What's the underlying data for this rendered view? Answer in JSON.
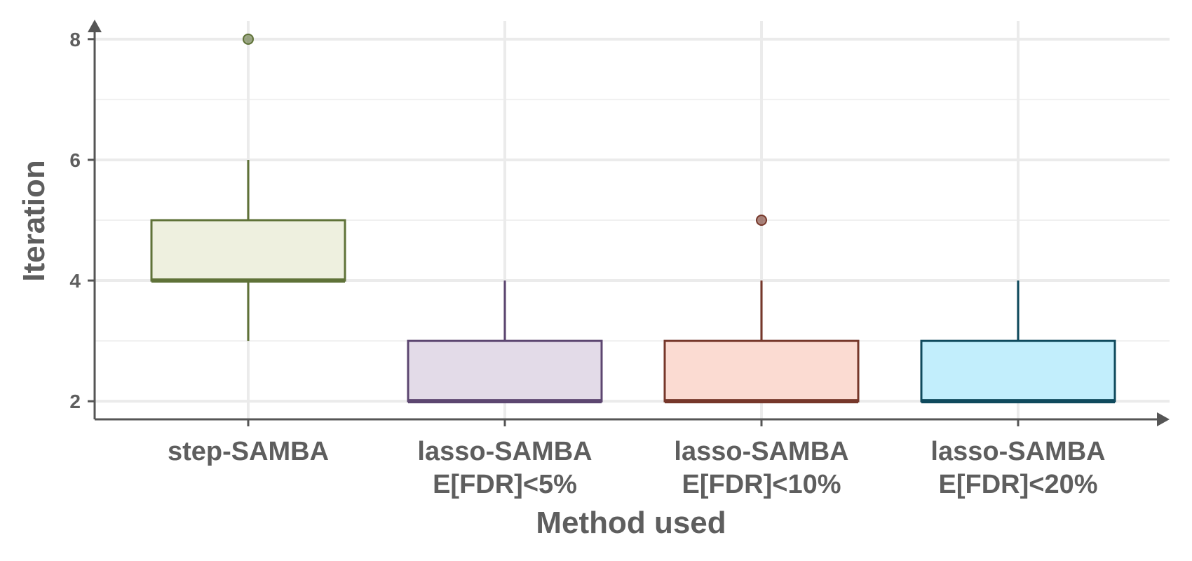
{
  "chart_data": {
    "type": "box",
    "title": "",
    "xlabel": "Method used",
    "ylabel": "Iteration",
    "ylim": [
      1.7,
      8.3
    ],
    "yticks": [
      2,
      4,
      6,
      8
    ],
    "grid": true,
    "categories": [
      {
        "line1": "step-SAMBA",
        "line2": ""
      },
      {
        "line1": "lasso-SAMBA",
        "line2": "E[FDR]<5%"
      },
      {
        "line1": "lasso-SAMBA",
        "line2": "E[FDR]<10%"
      },
      {
        "line1": "lasso-SAMBA",
        "line2": "E[FDR]<20%"
      }
    ],
    "series": [
      {
        "whisker_low": 3,
        "q1": 4,
        "median": 4,
        "q3": 5,
        "whisker_high": 6,
        "outliers": [
          8
        ],
        "fill": "#eef0df",
        "stroke": "#5f7238"
      },
      {
        "whisker_low": 2,
        "q1": 2,
        "median": 2,
        "q3": 3,
        "whisker_high": 4,
        "outliers": [],
        "fill": "#e3dbe8",
        "stroke": "#5c4670"
      },
      {
        "whisker_low": 2,
        "q1": 2,
        "median": 2,
        "q3": 3,
        "whisker_high": 4,
        "outliers": [
          5
        ],
        "fill": "#fbdbd2",
        "stroke": "#76372a"
      },
      {
        "whisker_low": 2,
        "q1": 2,
        "median": 2,
        "q3": 3,
        "whisker_high": 4,
        "outliers": [],
        "fill": "#c2eefc",
        "stroke": "#0f4a5d"
      }
    ]
  }
}
